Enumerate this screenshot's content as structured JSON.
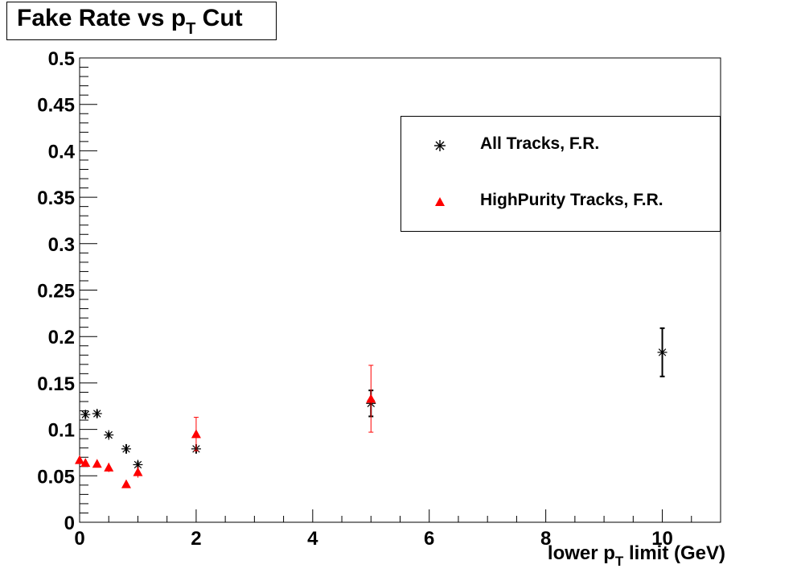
{
  "chart_data": {
    "type": "scatter",
    "title": {
      "main": "Fake Rate vs p",
      "sub": "T",
      "suffix": " Cut"
    },
    "xlabel": {
      "main": "lower p",
      "sub": "T",
      "suffix": " limit (GeV)"
    },
    "xlim": [
      0,
      11
    ],
    "ylim": [
      0,
      0.5
    ],
    "xticks": [
      0,
      2,
      4,
      6,
      8,
      10
    ],
    "xtick_labels": [
      "0",
      "2",
      "4",
      "6",
      "8",
      "10"
    ],
    "yticks": [
      0,
      0.05,
      0.1,
      0.15,
      0.2,
      0.25,
      0.3,
      0.35,
      0.4,
      0.45,
      0.5
    ],
    "ytick_labels": [
      "0",
      "0.05",
      "0.1",
      "0.15",
      "0.2",
      "0.25",
      "0.3",
      "0.35",
      "0.4",
      "0.45",
      "0.5"
    ],
    "legend_position": "top-right",
    "series": [
      {
        "name": "All Tracks, F.R.",
        "marker": "asterisk",
        "color": "#000000",
        "x": [
          0.1,
          0.3,
          0.5,
          0.8,
          1.0,
          2.0,
          5.0,
          10.0
        ],
        "y": [
          0.116,
          0.117,
          0.094,
          0.079,
          0.062,
          0.079,
          0.128,
          0.183
        ],
        "err": [
          0.004,
          0.004,
          0.003,
          0.005,
          0.004,
          0.005,
          0.014,
          0.026
        ]
      },
      {
        "name": "HighPurity Tracks, F.R.",
        "marker": "triangle",
        "color": "#ff0000",
        "x": [
          0.0,
          0.1,
          0.3,
          0.5,
          0.8,
          1.0,
          2.0,
          5.0
        ],
        "y": [
          0.067,
          0.064,
          0.063,
          0.059,
          0.041,
          0.054,
          0.095,
          0.133
        ],
        "err": [
          0.002,
          0.002,
          0.002,
          0.005,
          0.002,
          0.006,
          0.018,
          0.036
        ]
      }
    ]
  }
}
